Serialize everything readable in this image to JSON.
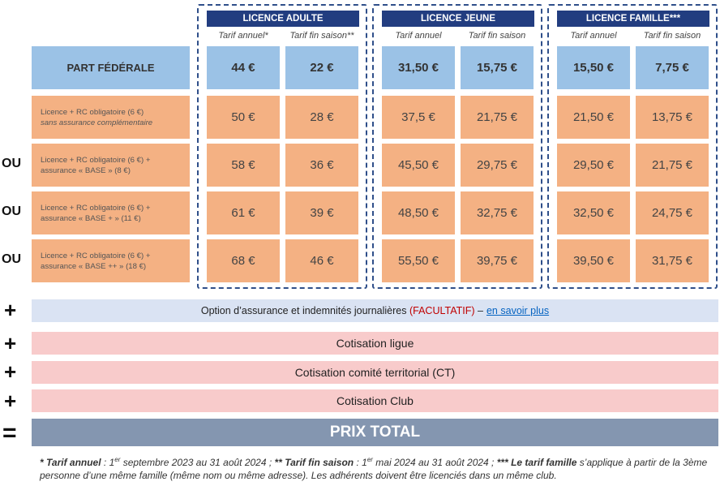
{
  "groups": [
    {
      "title": "LICENCE ADULTE",
      "sub_annual": "Tarif annuel*",
      "sub_end": "Tarif fin saison**",
      "federal": [
        "44 €",
        "22 €"
      ],
      "rows": [
        [
          "50 €",
          "28 €"
        ],
        [
          "58 €",
          "36 €"
        ],
        [
          "61 €",
          "39 €"
        ],
        [
          "68 €",
          "46 €"
        ]
      ]
    },
    {
      "title": "LICENCE JEUNE",
      "sub_annual": "Tarif annuel",
      "sub_end": "Tarif fin saison",
      "federal": [
        "31,50 €",
        "15,75 €"
      ],
      "rows": [
        [
          "37,5 €",
          "21,75 €"
        ],
        [
          "45,50 €",
          "29,75 €"
        ],
        [
          "48,50 €",
          "32,75 €"
        ],
        [
          "55,50 €",
          "39,75 €"
        ]
      ]
    },
    {
      "title": "LICENCE FAMILLE***",
      "sub_annual": "Tarif annuel",
      "sub_end": "Tarif fin saison",
      "federal": [
        "15,50 €",
        "7,75 €"
      ],
      "rows": [
        [
          "21,50 €",
          "13,75 €"
        ],
        [
          "29,50 €",
          "21,75 €"
        ],
        [
          "32,50 €",
          "24,75 €"
        ],
        [
          "39,50 €",
          "31,75 €"
        ]
      ]
    }
  ],
  "federal_label": "PART FÉDÉRALE",
  "row_labels": [
    {
      "line1": "Licence + RC obligatoire (6 €)",
      "line2": "sans assurance complémentaire"
    },
    {
      "line1": "Licence + RC obligatoire (6 €) +",
      "line2": "assurance « BASE » (8 €)"
    },
    {
      "line1": "Licence + RC obligatoire (6 €) +",
      "line2": "assurance « BASE + » (11 €)"
    },
    {
      "line1": "Licence + RC obligatoire (6 €) +",
      "line2": "assurance « BASE ++ » (18 €)"
    }
  ],
  "ou_label": "OU",
  "plus_symbol": "+",
  "equals_symbol": "=",
  "option": {
    "text": "Option d’assurance et indemnités journalières",
    "facultatif": "(FACULTATIF)",
    "dash": "–",
    "link": "en savoir plus"
  },
  "cotisations": [
    "Cotisation ligue",
    "Cotisation comité territorial (CT)",
    "Cotisation Club"
  ],
  "total_label": "PRIX TOTAL",
  "footnote": {
    "a_label": "* Tarif annuel",
    "a_text_1": " : 1",
    "a_sup": "er",
    "a_text_2": " septembre 2023 au 31 août 2024 ; ",
    "b_label": "** Tarif fin saison",
    "b_text_1": " : 1",
    "b_sup": "er",
    "b_text_2": " mai 2024 au 31 août 2024 ; ",
    "c_label": "*** Le tarif famille",
    "c_text": " s’applique à partir de la 3ème personne d’une même famille (même nom ou même adresse). Les adhérents doivent être licenciés dans un même club."
  }
}
